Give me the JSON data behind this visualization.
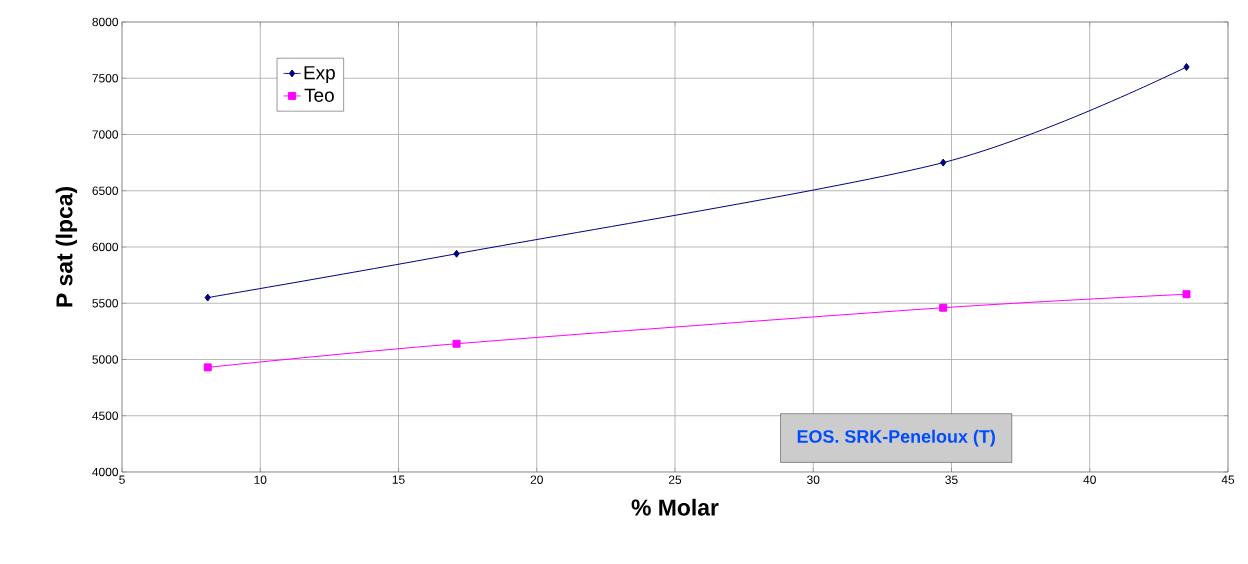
{
  "chart_data": {
    "type": "line",
    "xlabel": "% Molar",
    "ylabel": "P sat (lpca)",
    "x": [
      8.1,
      17.1,
      34.7,
      43.5
    ],
    "series": [
      {
        "name": "Exp",
        "color": "#000080",
        "marker": "diamond",
        "values": [
          5550,
          5940,
          6750,
          7600
        ]
      },
      {
        "name": "Teo",
        "color": "#ff00ff",
        "marker": "square",
        "values": [
          4930,
          5140,
          5460,
          5580
        ]
      }
    ],
    "xlim": [
      5,
      45
    ],
    "xticks": [
      5,
      10,
      15,
      20,
      25,
      30,
      35,
      40,
      45
    ],
    "ylim": [
      4000,
      8000
    ],
    "yticks": [
      4000,
      4500,
      5000,
      5500,
      6000,
      6500,
      7000,
      7500,
      8000
    ],
    "grid": true,
    "legend": "top left",
    "annotations": [
      "EOS. SRK-Peneloux (T)"
    ]
  }
}
